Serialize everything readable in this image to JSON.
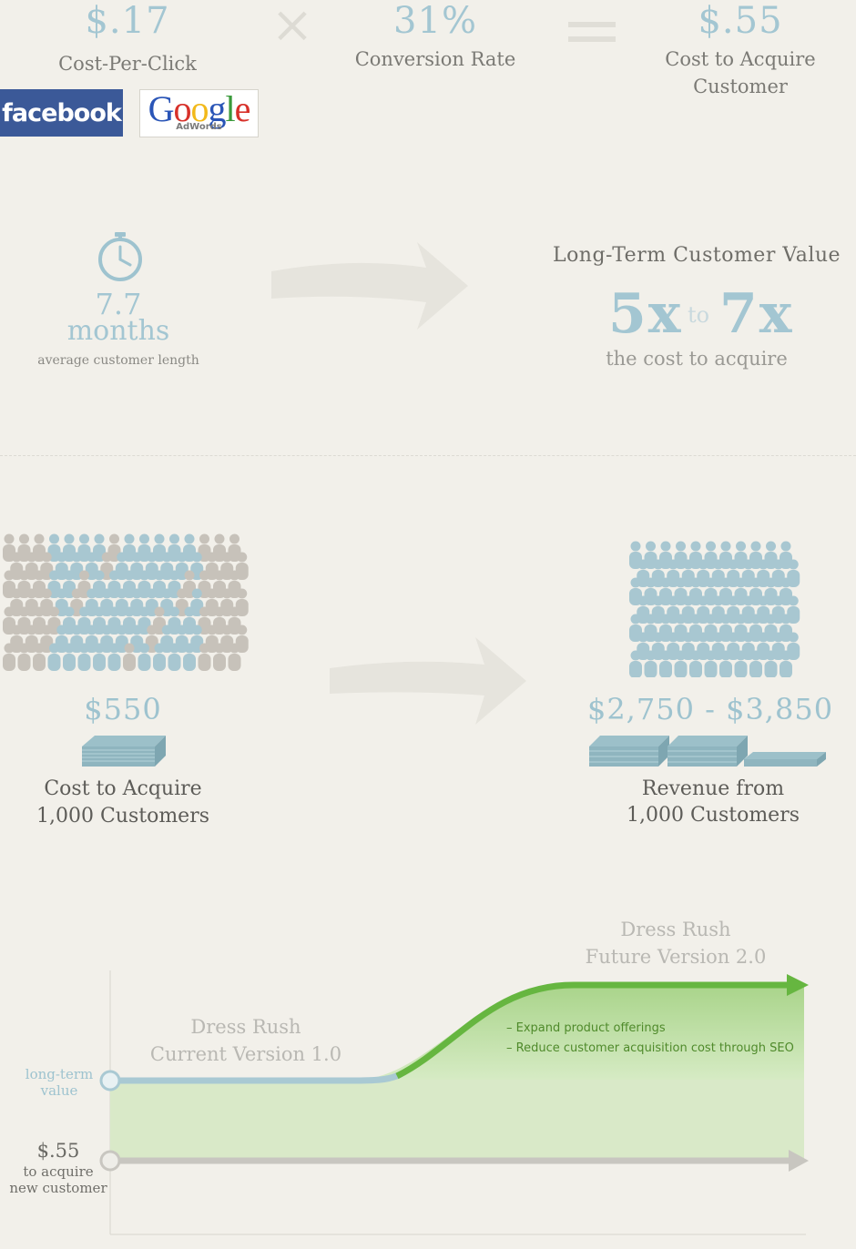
{
  "formula": {
    "cpc_value": "$.17",
    "cpc_label": "Cost-Per-Click",
    "operator_multiply": "×",
    "conversion_value": "31%",
    "conversion_label": "Conversion Rate",
    "cac_value": "$.55",
    "cac_label_line1": "Cost to Acquire",
    "cac_label_line2": "Customer"
  },
  "logos": {
    "facebook": "facebook",
    "google_word": "Google",
    "google_sub": "AdWords"
  },
  "lifetime": {
    "months_value": "7.7",
    "months_unit": "months",
    "months_caption": "average customer length",
    "ltv_title": "Long-Term Customer Value",
    "mult_low": "5x",
    "mult_to": "to",
    "mult_high": "7x",
    "mult_caption": "the cost to acquire"
  },
  "customers": {
    "cost_value": "$550",
    "cost_line1": "Cost to Acquire",
    "cost_line2": "1,000 Customers",
    "revenue_value": "$2,750 - $3,850",
    "revenue_line1": "Revenue from",
    "revenue_line2": "1,000 Customers"
  },
  "chart_data": {
    "type": "area",
    "title": "",
    "series": [
      {
        "name": "Dress Rush Current Version 1.0",
        "label_line1": "Dress Rush",
        "label_line2": "Current Version 1.0",
        "color": "#a9c9d3"
      },
      {
        "name": "Dress Rush Future Version 2.0",
        "label_line1": "Dress Rush",
        "label_line2": "Future Version 2.0",
        "color": "#66b640"
      },
      {
        "name": "$.55 to acquire new customer",
        "color": "#c8c6c0"
      }
    ],
    "y_labels": {
      "ltv_line1": "long-term",
      "ltv_line2": "value",
      "cac_value": "$.55",
      "cac_line1": "to acquire",
      "cac_line2": "new customer"
    },
    "annotations": [
      "– Expand product offerings",
      "– Reduce customer acquisition cost through SEO"
    ],
    "colors": {
      "green": "#66b640",
      "green_fill": "#c9e3b1",
      "blue_line": "#a9c9d3",
      "grey_line": "#c8c6c0"
    }
  }
}
